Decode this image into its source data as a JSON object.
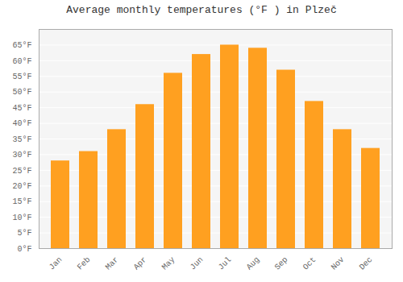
{
  "chart_data": {
    "type": "bar",
    "title": "Average monthly temperatures (°F ) in Plzeč",
    "categories": [
      "Jan",
      "Feb",
      "Mar",
      "Apr",
      "May",
      "Jun",
      "Jul",
      "Aug",
      "Sep",
      "Oct",
      "Nov",
      "Dec"
    ],
    "values": [
      28,
      31,
      38,
      46,
      56,
      62,
      65,
      64,
      57,
      47,
      38,
      32
    ],
    "color": "#FFA020",
    "ylim": [
      0,
      70
    ],
    "yticks": [
      {
        "value": 0,
        "label": "0°F"
      },
      {
        "value": 5,
        "label": "5°F"
      },
      {
        "value": 10,
        "label": "10°F"
      },
      {
        "value": 15,
        "label": "15°F"
      },
      {
        "value": 20,
        "label": "20°F"
      },
      {
        "value": 25,
        "label": "25°F"
      },
      {
        "value": 30,
        "label": "30°F"
      },
      {
        "value": 35,
        "label": "35°F"
      },
      {
        "value": 40,
        "label": "40°F"
      },
      {
        "value": 45,
        "label": "45°F"
      },
      {
        "value": 50,
        "label": "50°F"
      },
      {
        "value": 55,
        "label": "55°F"
      },
      {
        "value": 60,
        "label": "60°F"
      },
      {
        "value": 65,
        "label": "65°F"
      }
    ],
    "grid": true
  }
}
